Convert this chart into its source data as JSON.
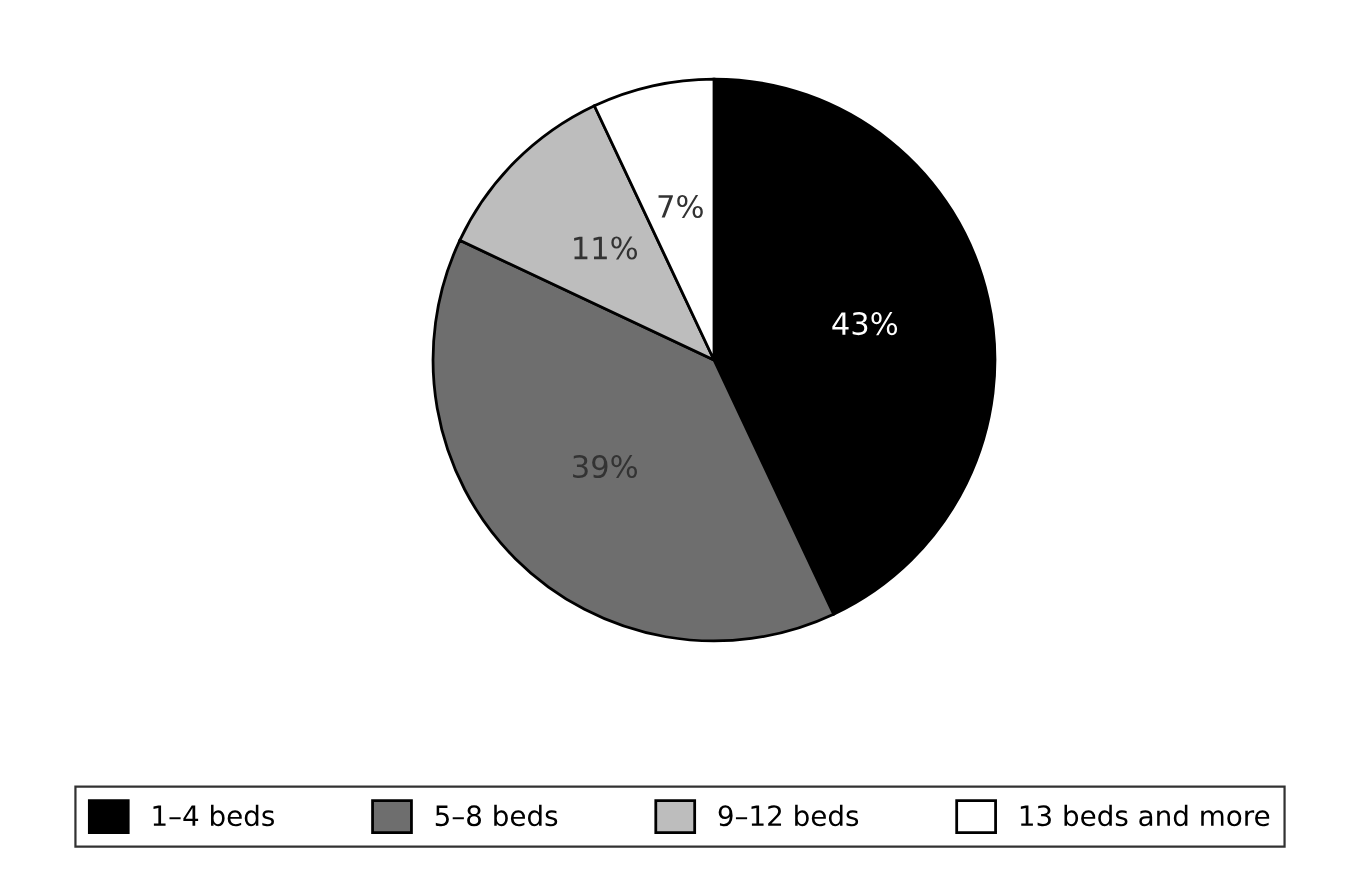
{
  "chart_data": {
    "type": "pie",
    "categories": [
      "1–4 beds",
      "5–8 beds",
      "9–12 beds",
      "13 beds and more"
    ],
    "values": [
      43,
      39,
      11,
      7
    ],
    "colors": [
      "#000000",
      "#6e6e6e",
      "#bdbdbd",
      "#ffffff"
    ],
    "value_labels": [
      "43%",
      "39%",
      "11%",
      "7%"
    ],
    "legend": "bottom"
  }
}
